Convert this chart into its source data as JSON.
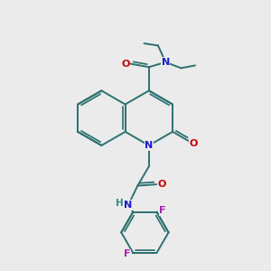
{
  "background_color": "#ebebeb",
  "bond_color": "#2d7070",
  "bond_lw": 1.4,
  "atom_colors": {
    "O": "#cc0000",
    "N": "#1a1acc",
    "F": "#aa22aa",
    "H": "#338888"
  },
  "figsize": [
    3.0,
    3.0
  ],
  "dpi": 100
}
